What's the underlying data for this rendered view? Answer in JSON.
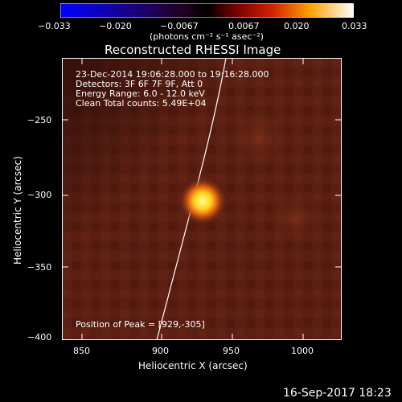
{
  "colorbar": {
    "tick_labels": [
      "−0.033",
      "−0.020",
      "−0.0067",
      "0.0067",
      "0.020",
      "0.033"
    ],
    "unit_label": "(photons cm⁻² s⁻¹ asec⁻²)",
    "range": [
      -0.033,
      0.033
    ]
  },
  "title": "Reconstructed RHESSI Image",
  "info": {
    "line1": "23-Dec-2014 19:06:28.000 to 19:16:28.000",
    "line2": "Detectors: 3F 6F 7F 9F, Att 0",
    "line3": "Energy Range: 6.0 - 12.0 keV",
    "line4": "Clean     Total counts: 5.49E+04"
  },
  "peak_label": "Position of Peak = [929,-305]",
  "x_axis": {
    "label": "Heliocentric X (arcsec)",
    "ticks": [
      "850",
      "900",
      "950",
      "1000"
    ]
  },
  "y_axis": {
    "label": "Heliocentric Y (arcsec)",
    "ticks": [
      "−250",
      "−300",
      "−350",
      "−400"
    ]
  },
  "footer_date": "16-Sep-2017 18:23",
  "colors": {
    "background": "#000000",
    "foreground": "#ffffff",
    "image_base": "#5a1f12",
    "peak": "#ffff80"
  }
}
